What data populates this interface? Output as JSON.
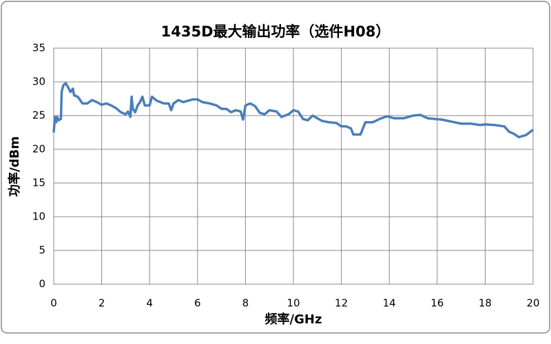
{
  "chart_data": {
    "type": "line",
    "title": "1435D最大输出功率（选件H08）",
    "x_label": "频率/GHz",
    "y_label": "功率/dBm",
    "x": [
      0,
      0.05,
      0.1,
      0.15,
      0.2,
      0.3,
      0.33,
      0.4,
      0.5,
      0.6,
      0.7,
      0.8,
      0.85,
      1.0,
      1.2,
      1.4,
      1.6,
      1.8,
      2.0,
      2.2,
      2.4,
      2.6,
      2.8,
      3.0,
      3.1,
      3.2,
      3.25,
      3.3,
      3.4,
      3.5,
      3.6,
      3.7,
      3.8,
      4.0,
      4.1,
      4.3,
      4.6,
      4.8,
      4.9,
      5.0,
      5.2,
      5.4,
      5.6,
      5.8,
      6.0,
      6.2,
      6.5,
      6.8,
      7.0,
      7.2,
      7.4,
      7.6,
      7.8,
      7.9,
      8.0,
      8.2,
      8.4,
      8.6,
      8.8,
      9.0,
      9.3,
      9.5,
      9.8,
      10.0,
      10.2,
      10.4,
      10.6,
      10.8,
      11.0,
      11.2,
      11.5,
      11.8,
      12.0,
      12.2,
      12.4,
      12.5,
      12.8,
      13.0,
      13.3,
      13.6,
      13.9,
      14.2,
      14.6,
      15.0,
      15.3,
      15.6,
      15.9,
      16.2,
      16.6,
      17.0,
      17.4,
      17.8,
      18.0,
      18.4,
      18.8,
      19.0,
      19.2,
      19.4,
      19.7,
      20.0
    ],
    "series": [
      {
        "name": "1435D",
        "color": "#4a7ebb",
        "values": [
          22.5,
          24.8,
          24.0,
          24.8,
          24.3,
          24.5,
          28.5,
          29.5,
          29.8,
          29.2,
          28.5,
          29.0,
          28.0,
          27.8,
          26.8,
          26.8,
          27.3,
          27.0,
          26.6,
          26.8,
          26.5,
          26.1,
          25.5,
          25.2,
          25.6,
          24.8,
          27.8,
          26.0,
          25.5,
          26.5,
          27.0,
          27.8,
          26.5,
          26.5,
          27.8,
          27.2,
          26.8,
          26.8,
          25.8,
          26.8,
          27.3,
          27.0,
          27.2,
          27.4,
          27.4,
          27.0,
          26.8,
          26.5,
          26.0,
          26.0,
          25.5,
          25.8,
          25.6,
          24.4,
          26.5,
          26.8,
          26.4,
          25.4,
          25.2,
          25.8,
          25.6,
          24.8,
          25.2,
          25.8,
          25.6,
          24.5,
          24.3,
          25.0,
          24.6,
          24.2,
          24.0,
          23.9,
          23.4,
          23.4,
          23.1,
          22.2,
          22.2,
          24.0,
          24.0,
          24.5,
          24.9,
          24.6,
          24.6,
          25.0,
          25.1,
          24.6,
          24.5,
          24.4,
          24.1,
          23.8,
          23.8,
          23.6,
          23.7,
          23.6,
          23.4,
          22.6,
          22.3,
          21.8,
          22.1,
          22.9
        ]
      }
    ],
    "xlim": [
      0,
      20
    ],
    "xticks": [
      0,
      2,
      4,
      6,
      8,
      10,
      12,
      14,
      16,
      18,
      20
    ],
    "ylim": [
      0,
      35
    ],
    "yticks": [
      0,
      5,
      10,
      15,
      20,
      25,
      30,
      35
    ],
    "grid": true
  }
}
